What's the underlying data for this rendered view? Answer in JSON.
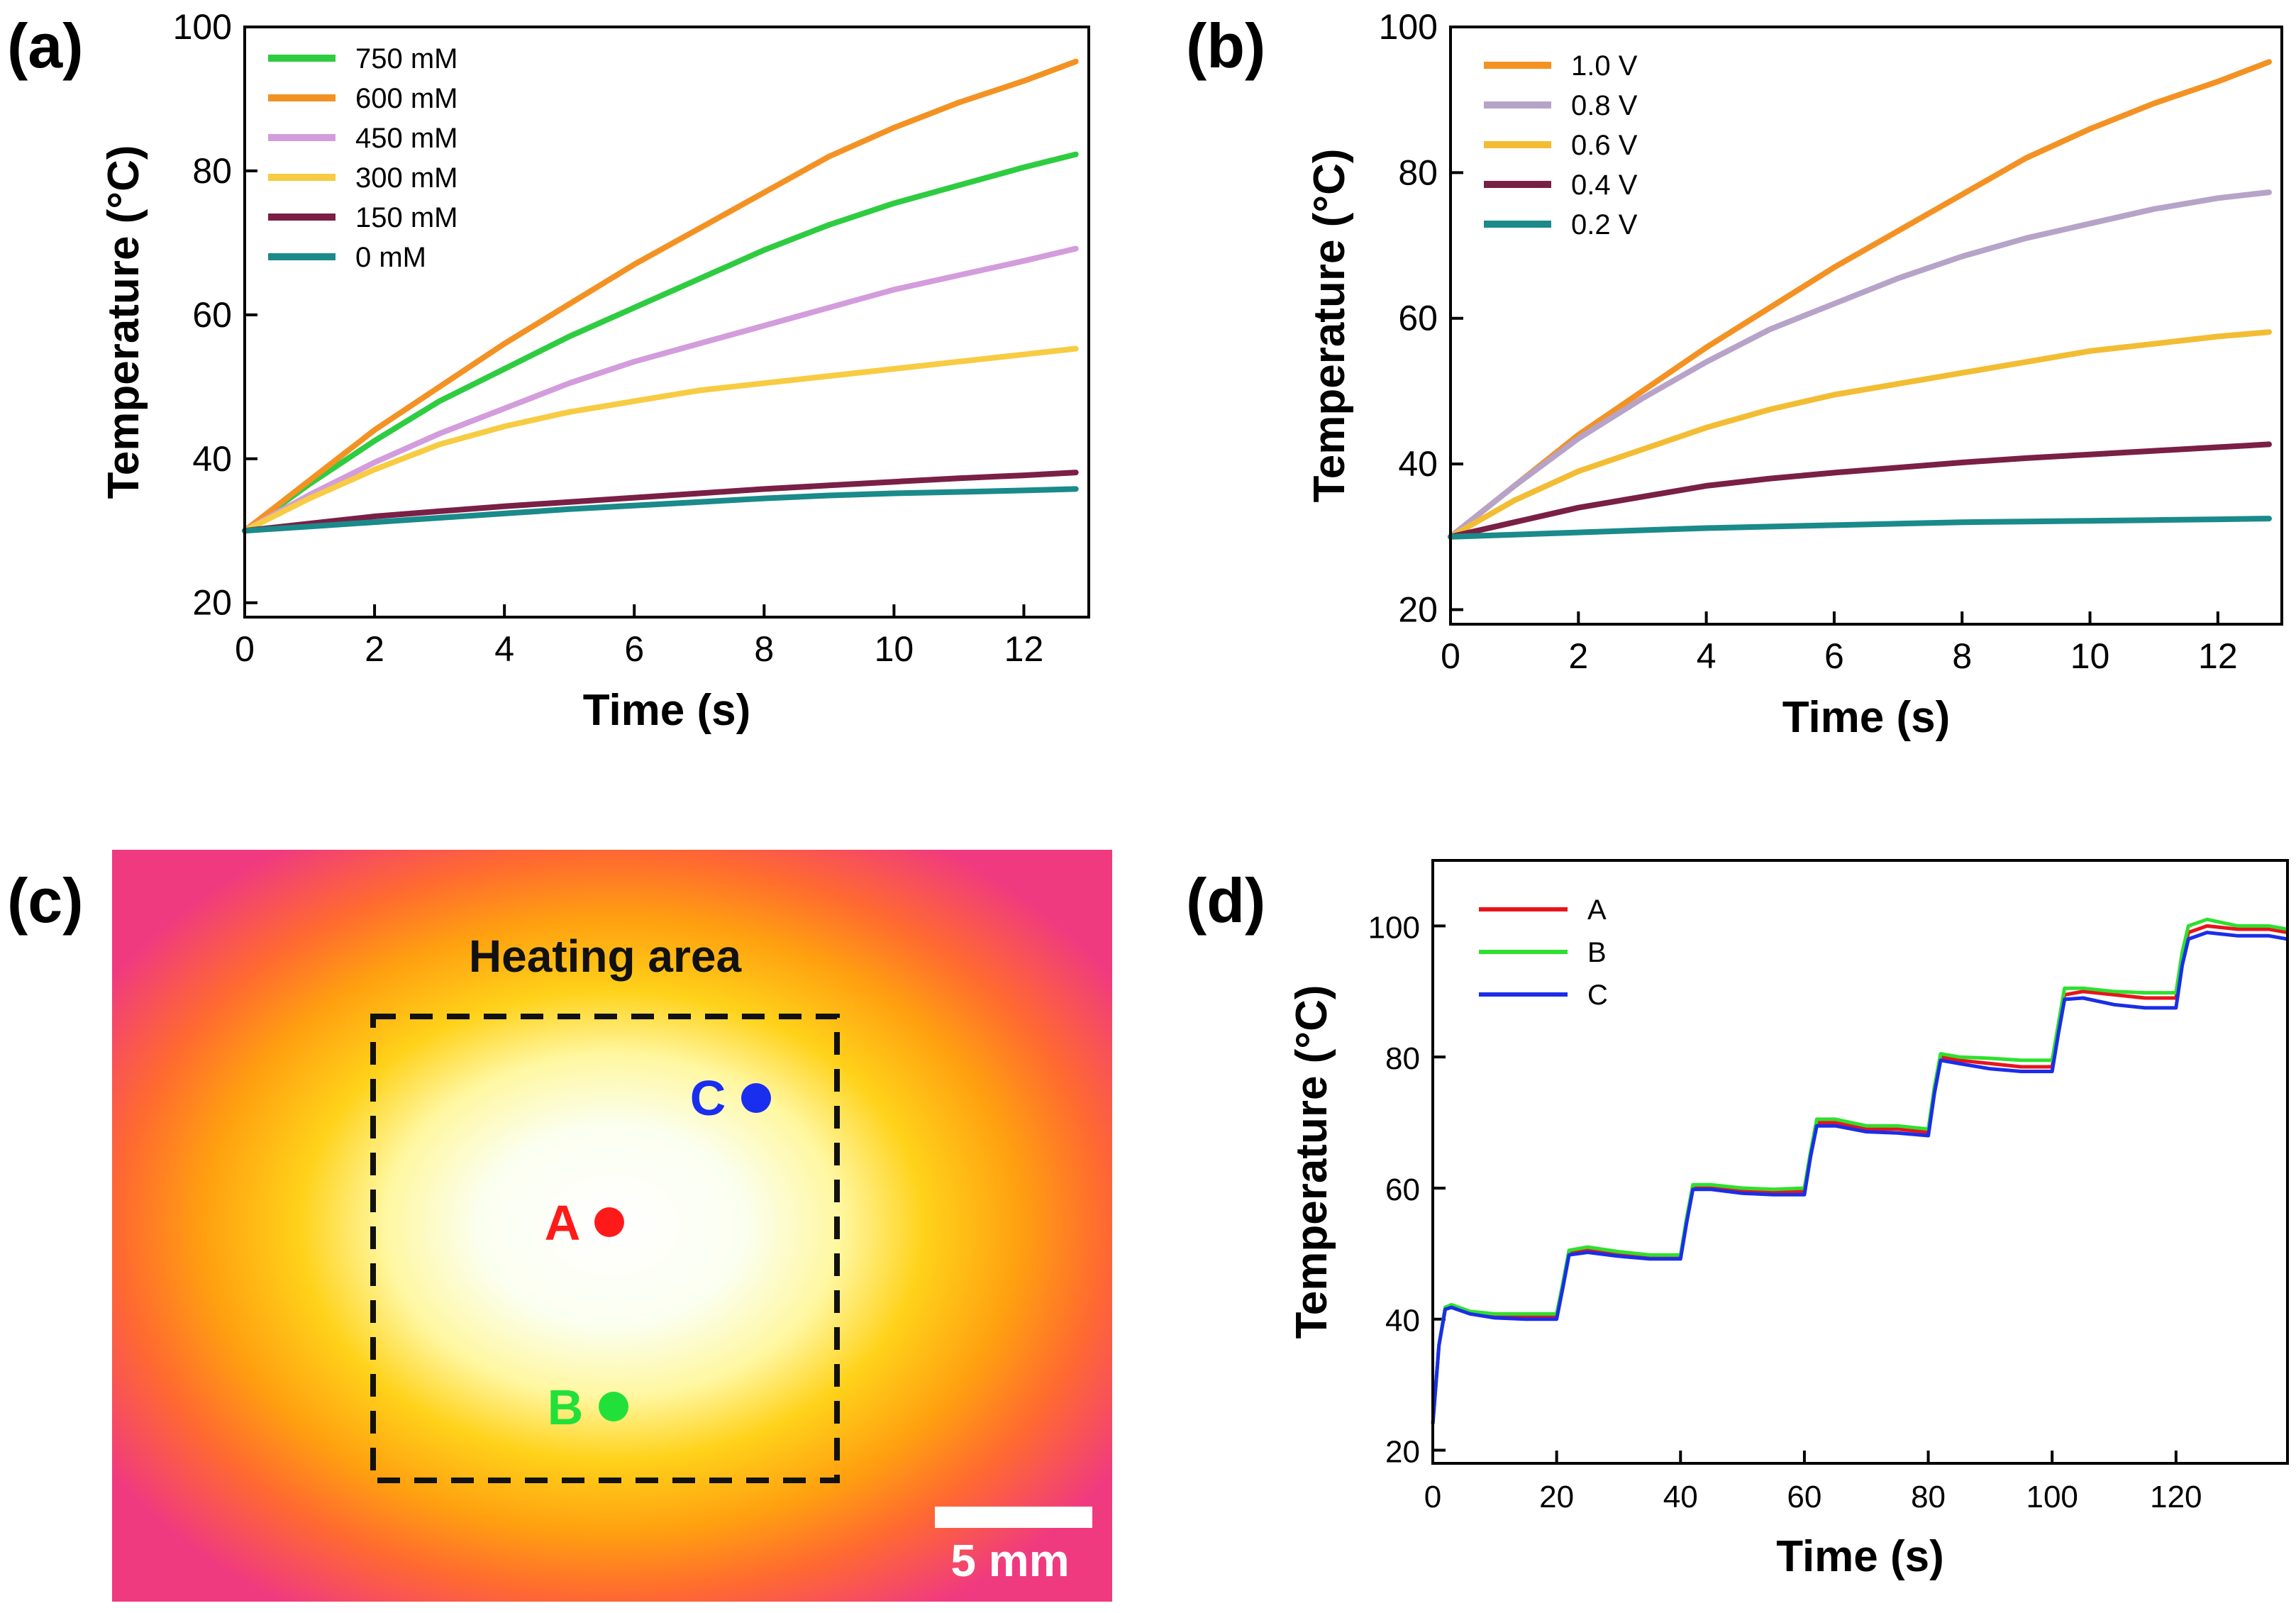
{
  "chart_data": [
    {
      "panel": "(a)",
      "type": "line",
      "xlabel": "Time (s)",
      "ylabel": "Temperature (°C)",
      "xlim": [
        0,
        13
      ],
      "ylim": [
        18,
        100
      ],
      "xticks": [
        0,
        2,
        4,
        6,
        8,
        10,
        12
      ],
      "yticks": [
        20,
        40,
        60,
        80,
        100
      ],
      "legend_position": "top-left",
      "x": [
        0,
        1,
        2,
        3,
        4,
        5,
        6,
        7,
        8,
        9,
        10,
        11,
        12,
        12.8
      ],
      "series": [
        {
          "name": "750 mM",
          "color": "#2ecc40",
          "values": [
            30,
            36.5,
            42.5,
            48,
            52.5,
            57,
            61,
            65,
            69,
            72.5,
            75.5,
            78,
            80.5,
            82.3
          ]
        },
        {
          "name": "600 mM",
          "color": "#f39223",
          "values": [
            30,
            37,
            44,
            50,
            56,
            61.5,
            67,
            72,
            77,
            82,
            86,
            89.5,
            92.5,
            95.2
          ]
        },
        {
          "name": "450 mM",
          "color": "#d39cdc",
          "values": [
            30,
            35,
            39.5,
            43.5,
            47,
            50.5,
            53.5,
            56,
            58.5,
            61,
            63.5,
            65.5,
            67.5,
            69.2
          ]
        },
        {
          "name": "300 mM",
          "color": "#f7cc42",
          "values": [
            30,
            34.5,
            38.5,
            42,
            44.5,
            46.5,
            48,
            49.5,
            50.5,
            51.5,
            52.5,
            53.5,
            54.5,
            55.3
          ]
        },
        {
          "name": "150 mM",
          "color": "#7a1f45",
          "values": [
            30,
            31,
            32,
            32.7,
            33.4,
            34,
            34.6,
            35.2,
            35.8,
            36.3,
            36.8,
            37.3,
            37.7,
            38.1
          ]
        },
        {
          "name": "0 mM",
          "color": "#1a8a8a",
          "values": [
            30,
            30.6,
            31.2,
            31.8,
            32.4,
            33,
            33.5,
            34,
            34.5,
            34.9,
            35.2,
            35.4,
            35.6,
            35.8
          ]
        }
      ]
    },
    {
      "panel": "(b)",
      "type": "line",
      "xlabel": "Time (s)",
      "ylabel": "Temperature (°C)",
      "xlim": [
        0,
        13
      ],
      "ylim": [
        18,
        100
      ],
      "xticks": [
        0,
        2,
        4,
        6,
        8,
        10,
        12
      ],
      "yticks": [
        20,
        40,
        60,
        80,
        100
      ],
      "legend_position": "top-left",
      "x": [
        0,
        1,
        2,
        3,
        4,
        5,
        6,
        7,
        8,
        9,
        10,
        11,
        12,
        12.8
      ],
      "series": [
        {
          "name": "1.0 V",
          "color": "#f39223",
          "values": [
            30,
            37,
            44,
            50,
            56,
            61.5,
            67,
            72,
            77,
            82,
            86,
            89.5,
            92.5,
            95.2
          ]
        },
        {
          "name": "0.8 V",
          "color": "#b7a3c8",
          "values": [
            30,
            37,
            43.5,
            49,
            54,
            58.5,
            62,
            65.5,
            68.5,
            71,
            73,
            75,
            76.5,
            77.3
          ]
        },
        {
          "name": "0.6 V",
          "color": "#f2bd33",
          "values": [
            30,
            35,
            39,
            42,
            45,
            47.5,
            49.5,
            51,
            52.5,
            54,
            55.5,
            56.5,
            57.5,
            58.1
          ]
        },
        {
          "name": "0.4 V",
          "color": "#7a1f45",
          "values": [
            30,
            32,
            34,
            35.5,
            37,
            38,
            38.8,
            39.5,
            40.2,
            40.8,
            41.3,
            41.8,
            42.3,
            42.7
          ]
        },
        {
          "name": "0.2 V",
          "color": "#1a8a8a",
          "values": [
            30,
            30.3,
            30.6,
            30.9,
            31.2,
            31.4,
            31.6,
            31.8,
            32,
            32.1,
            32.2,
            32.3,
            32.4,
            32.5
          ]
        }
      ]
    },
    {
      "panel": "(d)",
      "type": "line",
      "xlabel": "Time (s)",
      "ylabel": "Temperature (°C)",
      "xlim": [
        0,
        138
      ],
      "ylim": [
        18,
        110
      ],
      "xticks": [
        0,
        20,
        40,
        60,
        80,
        100,
        120
      ],
      "yticks": [
        20,
        40,
        60,
        80,
        100
      ],
      "legend_position": "top-left",
      "x": [
        0,
        1,
        2,
        3,
        6,
        10,
        15,
        20,
        21,
        22,
        25,
        30,
        35,
        40,
        41,
        42,
        45,
        50,
        55,
        60,
        61,
        62,
        65,
        70,
        75,
        80,
        81,
        82,
        85,
        90,
        95,
        100,
        101,
        102,
        105,
        110,
        115,
        120,
        121,
        122,
        125,
        130,
        135,
        138
      ],
      "series": [
        {
          "name": "A",
          "color": "#e8141c",
          "values": [
            24,
            36,
            41.5,
            42,
            41,
            40.5,
            40.5,
            40.5,
            45,
            50,
            50.5,
            50,
            49.5,
            49.5,
            55,
            60,
            60,
            59.5,
            59.5,
            59.5,
            65,
            70,
            70,
            69,
            69,
            68.5,
            75,
            80,
            79.5,
            79,
            78.5,
            78.5,
            84,
            89.5,
            90,
            89.5,
            89,
            89,
            95,
            99,
            100,
            99.5,
            99.5,
            99
          ]
        },
        {
          "name": "B",
          "color": "#2ee02e",
          "values": [
            24,
            36,
            41.8,
            42.2,
            41.2,
            40.8,
            40.8,
            40.8,
            45.5,
            50.5,
            51,
            50.3,
            49.8,
            49.8,
            55.5,
            60.5,
            60.5,
            60,
            59.8,
            60,
            65.5,
            70.5,
            70.5,
            69.5,
            69.5,
            69,
            75.5,
            80.5,
            80,
            79.8,
            79.5,
            79.5,
            85,
            90.5,
            90.5,
            90,
            89.8,
            89.8,
            96,
            100,
            101,
            100,
            100,
            99.5
          ]
        },
        {
          "name": "C",
          "color": "#1a2ee8",
          "values": [
            24,
            36,
            41.5,
            41.8,
            40.8,
            40.2,
            40,
            40,
            44.8,
            49.8,
            50.2,
            49.6,
            49.2,
            49.2,
            54.8,
            59.8,
            59.8,
            59.2,
            59,
            59,
            64.8,
            69.5,
            69.5,
            68.6,
            68.4,
            68,
            74.5,
            79.5,
            79,
            78.2,
            77.8,
            77.8,
            83.5,
            88.8,
            89,
            88,
            87.5,
            87.5,
            94,
            98,
            99,
            98.5,
            98.5,
            98
          ]
        }
      ]
    }
  ],
  "panels": {
    "a_label": "(a)",
    "b_label": "(b)",
    "c_label": "(c)",
    "d_label": "(d)"
  },
  "thermal_image": {
    "heating_area_label": "Heating area",
    "scale_bar_label": "5 mm",
    "points": [
      {
        "name": "A",
        "color": "#ff1a1a"
      },
      {
        "name": "B",
        "color": "#22e03a"
      },
      {
        "name": "C",
        "color": "#1a2ef0"
      }
    ]
  }
}
